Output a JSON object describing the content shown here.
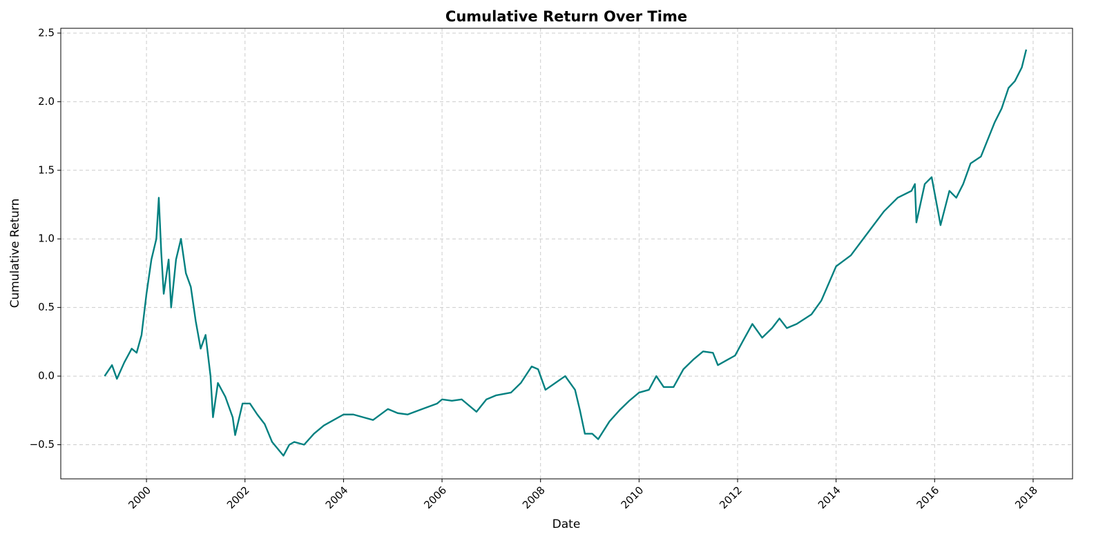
{
  "chart_data": {
    "type": "line",
    "title": "Cumulative Return Over Time",
    "x_label": "Date",
    "y_label": "Cumulative Return",
    "x": [
      1999.15,
      1999.3,
      1999.4,
      1999.55,
      1999.7,
      1999.8,
      1999.9,
      2000.0,
      2000.1,
      2000.2,
      2000.25,
      2000.3,
      2000.35,
      2000.45,
      2000.5,
      2000.6,
      2000.7,
      2000.8,
      2000.9,
      2001.0,
      2001.1,
      2001.2,
      2001.3,
      2001.35,
      2001.45,
      2001.6,
      2001.75,
      2001.8,
      2001.95,
      2002.1,
      2002.25,
      2002.4,
      2002.55,
      2002.78,
      2002.9,
      2003.0,
      2003.2,
      2003.4,
      2003.6,
      2003.8,
      2004.0,
      2004.2,
      2004.4,
      2004.6,
      2004.9,
      2005.1,
      2005.3,
      2005.6,
      2005.9,
      2006.0,
      2006.2,
      2006.4,
      2006.7,
      2006.9,
      2007.1,
      2007.4,
      2007.6,
      2007.82,
      2007.95,
      2008.1,
      2008.3,
      2008.5,
      2008.7,
      2008.8,
      2008.9,
      2009.05,
      2009.17,
      2009.4,
      2009.6,
      2009.8,
      2010.0,
      2010.2,
      2010.35,
      2010.5,
      2010.7,
      2010.9,
      2011.1,
      2011.3,
      2011.5,
      2011.6,
      2011.8,
      2011.95,
      2012.1,
      2012.3,
      2012.5,
      2012.7,
      2012.85,
      2013.0,
      2013.2,
      2013.5,
      2013.7,
      2014.0,
      2014.3,
      2014.55,
      2014.97,
      2015.25,
      2015.53,
      2015.6,
      2015.63,
      2015.8,
      2015.94,
      2016.07,
      2016.12,
      2016.3,
      2016.44,
      2016.58,
      2016.73,
      2016.94,
      2017.22,
      2017.36,
      2017.5,
      2017.63,
      2017.77,
      2017.86
    ],
    "series": [
      {
        "name": "Cumulative Return",
        "color": "#008080",
        "values": [
          0.0,
          0.08,
          -0.02,
          0.1,
          0.2,
          0.17,
          0.3,
          0.6,
          0.85,
          1.0,
          1.3,
          0.9,
          0.6,
          0.85,
          0.5,
          0.85,
          1.0,
          0.75,
          0.65,
          0.4,
          0.2,
          0.3,
          0.0,
          -0.3,
          -0.05,
          -0.15,
          -0.3,
          -0.43,
          -0.2,
          -0.2,
          -0.28,
          -0.35,
          -0.48,
          -0.58,
          -0.5,
          -0.48,
          -0.5,
          -0.42,
          -0.36,
          -0.32,
          -0.28,
          -0.28,
          -0.3,
          -0.32,
          -0.24,
          -0.27,
          -0.28,
          -0.24,
          -0.2,
          -0.17,
          -0.18,
          -0.17,
          -0.26,
          -0.17,
          -0.14,
          -0.12,
          -0.05,
          0.07,
          0.05,
          -0.1,
          -0.05,
          0.0,
          -0.1,
          -0.25,
          -0.42,
          -0.42,
          -0.46,
          -0.33,
          -0.25,
          -0.18,
          -0.12,
          -0.1,
          0.0,
          -0.08,
          -0.08,
          0.05,
          0.12,
          0.18,
          0.17,
          0.08,
          0.12,
          0.15,
          0.25,
          0.38,
          0.28,
          0.35,
          0.42,
          0.35,
          0.38,
          0.45,
          0.55,
          0.8,
          0.88,
          1.0,
          1.2,
          1.3,
          1.35,
          1.4,
          1.12,
          1.4,
          1.45,
          1.2,
          1.1,
          1.35,
          1.3,
          1.4,
          1.55,
          1.6,
          1.85,
          1.95,
          2.1,
          2.15,
          2.25,
          2.38
        ]
      }
    ],
    "xlim": [
      1998.26,
      2018.8
    ],
    "xticks": [
      2000,
      2002,
      2004,
      2006,
      2008,
      2010,
      2012,
      2014,
      2016,
      2018
    ],
    "ylim": [
      -0.749,
      2.535
    ],
    "yticks": [
      {
        "value": -0.5,
        "label": "−0.5"
      },
      {
        "value": 0,
        "label": "0.0"
      },
      0.5,
      {
        "value": 1,
        "label": "1.0"
      },
      1.5,
      {
        "value": 2,
        "label": "2.0"
      },
      2.5
    ],
    "grid": true
  }
}
